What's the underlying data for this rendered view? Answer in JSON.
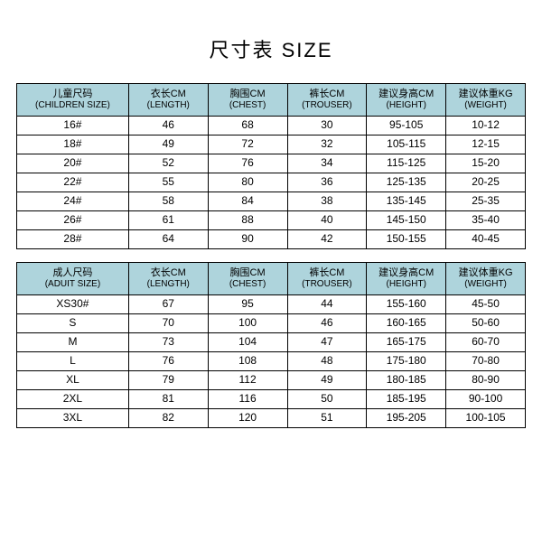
{
  "title": "尺寸表 SIZE",
  "colors": {
    "header_bg": "#aed4dc",
    "border": "#000000",
    "text": "#000000",
    "background": "#ffffff"
  },
  "children_table": {
    "columns": [
      {
        "cn": "儿童尺码",
        "en": "(CHILDREN SIZE)"
      },
      {
        "cn": "衣长CM",
        "en": "(LENGTH)"
      },
      {
        "cn": "胸围CM",
        "en": "(CHEST)"
      },
      {
        "cn": "裤长CM",
        "en": "(TROUSER)"
      },
      {
        "cn": "建议身高CM",
        "en": "(HEIGHT)"
      },
      {
        "cn": "建议体重KG",
        "en": "(WEIGHT)"
      }
    ],
    "rows": [
      [
        "16#",
        "46",
        "68",
        "30",
        "95-105",
        "10-12"
      ],
      [
        "18#",
        "49",
        "72",
        "32",
        "105-115",
        "12-15"
      ],
      [
        "20#",
        "52",
        "76",
        "34",
        "115-125",
        "15-20"
      ],
      [
        "22#",
        "55",
        "80",
        "36",
        "125-135",
        "20-25"
      ],
      [
        "24#",
        "58",
        "84",
        "38",
        "135-145",
        "25-35"
      ],
      [
        "26#",
        "61",
        "88",
        "40",
        "145-150",
        "35-40"
      ],
      [
        "28#",
        "64",
        "90",
        "42",
        "150-155",
        "40-45"
      ]
    ]
  },
  "adult_table": {
    "columns": [
      {
        "cn": "成人尺码",
        "en": "(ADUIT SIZE)"
      },
      {
        "cn": "衣长CM",
        "en": "(LENGTH)"
      },
      {
        "cn": "胸围CM",
        "en": "(CHEST)"
      },
      {
        "cn": "裤长CM",
        "en": "(TROUSER)"
      },
      {
        "cn": "建议身高CM",
        "en": "(HEIGHT)"
      },
      {
        "cn": "建议体重KG",
        "en": "(WEIGHT)"
      }
    ],
    "rows": [
      [
        "XS30#",
        "67",
        "95",
        "44",
        "155-160",
        "45-50"
      ],
      [
        "S",
        "70",
        "100",
        "46",
        "160-165",
        "50-60"
      ],
      [
        "M",
        "73",
        "104",
        "47",
        "165-175",
        "60-70"
      ],
      [
        "L",
        "76",
        "108",
        "48",
        "175-180",
        "70-80"
      ],
      [
        "XL",
        "79",
        "112",
        "49",
        "180-185",
        "80-90"
      ],
      [
        "2XL",
        "81",
        "116",
        "50",
        "185-195",
        "90-100"
      ],
      [
        "3XL",
        "82",
        "120",
        "51",
        "195-205",
        "100-105"
      ]
    ]
  }
}
